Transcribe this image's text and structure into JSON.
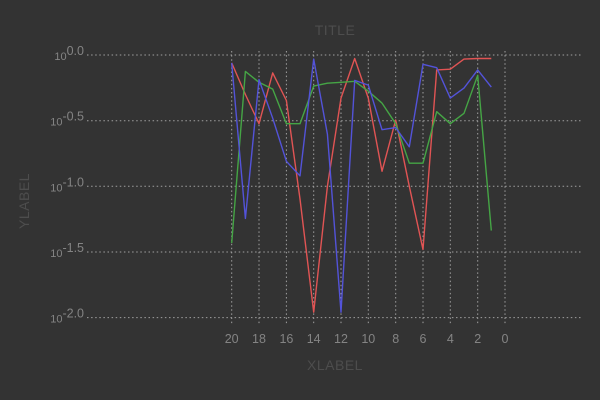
{
  "colors": {
    "background": "#333333",
    "grid": "#b3b3b3",
    "tick_label": "#848484",
    "axis_label": "#4d4d4d",
    "series_red": "#e15454",
    "series_green": "#45a545",
    "series_blue": "#5353d9"
  },
  "chart_data": {
    "type": "line",
    "title": "TITLE",
    "xlabel": "XLABEL",
    "ylabel": "YLABEL",
    "grid": "dotted",
    "legend_position": "none",
    "x_axis": {
      "reversed": true,
      "ticks": [
        20,
        18,
        16,
        14,
        12,
        10,
        8,
        6,
        4,
        2,
        0
      ],
      "tick_labels": [
        "20",
        "18",
        "16",
        "14",
        "12",
        "10",
        "8",
        "6",
        "4",
        "2",
        "0"
      ]
    },
    "y_axis": {
      "scale": "log10",
      "tick_exponents": [
        0.0,
        -0.5,
        -1.0,
        -1.5,
        -2.0
      ],
      "tick_base": "10",
      "tick_exponent_labels": [
        "0.0",
        "-0.5",
        "-1.0",
        "-1.5",
        "-2.0"
      ],
      "range": [
        0.01,
        1.0
      ]
    },
    "x": [
      20,
      19,
      18,
      17,
      16,
      15,
      14,
      13,
      12,
      11,
      10,
      9,
      8,
      7,
      6,
      5,
      4,
      3,
      2,
      1
    ],
    "series": [
      {
        "name": "red",
        "color": "#e15454",
        "values": [
          0.87,
          0.5,
          0.3,
          0.73,
          0.45,
          0.08,
          0.011,
          0.1,
          0.47,
          0.94,
          0.47,
          0.13,
          0.32,
          0.1,
          0.033,
          0.77,
          0.78,
          0.93,
          0.94,
          0.94
        ]
      },
      {
        "name": "green",
        "color": "#45a545",
        "values": [
          0.037,
          0.75,
          0.62,
          0.55,
          0.3,
          0.3,
          0.58,
          0.61,
          0.62,
          0.63,
          0.53,
          0.43,
          0.3,
          0.15,
          0.15,
          0.37,
          0.3,
          0.36,
          0.7,
          0.046
        ]
      },
      {
        "name": "blue",
        "color": "#5353d9",
        "values": [
          0.87,
          0.057,
          0.65,
          0.33,
          0.155,
          0.12,
          0.93,
          0.25,
          0.011,
          0.64,
          0.59,
          0.27,
          0.28,
          0.2,
          0.85,
          0.8,
          0.47,
          0.56,
          0.77,
          0.57
        ]
      }
    ]
  }
}
